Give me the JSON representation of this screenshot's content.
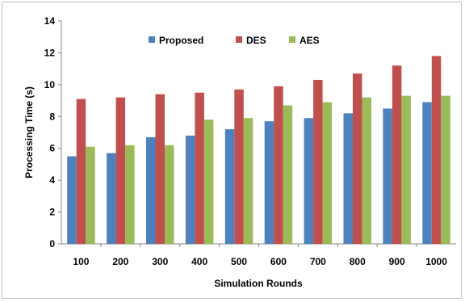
{
  "chart_data": {
    "type": "bar",
    "title": "",
    "xlabel": "Simulation Rounds",
    "ylabel": "Processing Time (s)",
    "ylim": [
      0,
      14
    ],
    "yticks": [
      0,
      2,
      4,
      6,
      8,
      10,
      12,
      14
    ],
    "grid": false,
    "legend_position": "top",
    "categories": [
      "100",
      "200",
      "300",
      "400",
      "500",
      "600",
      "700",
      "800",
      "900",
      "1000"
    ],
    "series": [
      {
        "name": "Proposed",
        "color": "#4f81bd",
        "values": [
          5.5,
          5.7,
          6.7,
          6.8,
          7.2,
          7.7,
          7.9,
          8.2,
          8.5,
          8.9
        ]
      },
      {
        "name": "DES",
        "color": "#c0504d",
        "values": [
          9.1,
          9.2,
          9.4,
          9.5,
          9.7,
          9.9,
          10.3,
          10.7,
          11.2,
          11.8
        ]
      },
      {
        "name": "AES",
        "color": "#9bbb59",
        "values": [
          6.1,
          6.2,
          6.2,
          7.8,
          7.9,
          8.7,
          8.9,
          9.2,
          9.3,
          9.3
        ]
      }
    ]
  }
}
